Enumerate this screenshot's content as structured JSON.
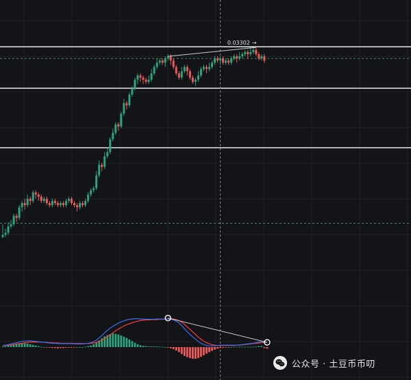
{
  "colors": {
    "background": "#131418",
    "grid": "#1f2025",
    "up": "#2ea37d",
    "down": "#ee5a5a",
    "dif_line": "#3f6df0",
    "dea_line": "#ff3b3b",
    "horizontal_line": "#ffffff",
    "dashed_level": "#3f8a6b",
    "crosshair": "#8a8b90",
    "annotation_line": "#cfcfcf"
  },
  "annotation": {
    "label": "0.03302",
    "arrow": "→"
  },
  "watermark": {
    "icon": "wechat-icon",
    "text": "公众号 · 土豆币币叨"
  },
  "chart_data": {
    "type": "candlestick",
    "y_axis": "unlabeled",
    "price_panel": {
      "price_range": [
        0,
        100
      ],
      "horizontal_lines": [
        93.5,
        74,
        46
      ],
      "dashed_levels": [
        88,
        10.5
      ],
      "crosshair_bar": 79,
      "trendline": {
        "from": {
          "bar": 60,
          "y": 89
        },
        "to": {
          "bar": 92,
          "y": 93.2
        }
      },
      "candles": [
        [
          4,
          5,
          10,
          3.5
        ],
        [
          5,
          6,
          8,
          4
        ],
        [
          6,
          9,
          11,
          5
        ],
        [
          9,
          10,
          12,
          8
        ],
        [
          10,
          14,
          15,
          9
        ],
        [
          14,
          13,
          15,
          11
        ],
        [
          13,
          18,
          19,
          12
        ],
        [
          18,
          20,
          21,
          16
        ],
        [
          20,
          19,
          22,
          17
        ],
        [
          19,
          22,
          24,
          18
        ],
        [
          22,
          21,
          23,
          19
        ],
        [
          21,
          25,
          26,
          20
        ],
        [
          25,
          24,
          26,
          22
        ],
        [
          24,
          23,
          25,
          21
        ],
        [
          23,
          21,
          24,
          20
        ],
        [
          21,
          22,
          23,
          20
        ],
        [
          22,
          20,
          23,
          19
        ],
        [
          20,
          19,
          21,
          18
        ],
        [
          19,
          21,
          22,
          18
        ],
        [
          21,
          20,
          22,
          19
        ],
        [
          20,
          19,
          21,
          18
        ],
        [
          19,
          20,
          21,
          18
        ],
        [
          20,
          19,
          21,
          18
        ],
        [
          19,
          21,
          22,
          18
        ],
        [
          21,
          22,
          23,
          20
        ],
        [
          22,
          20,
          23,
          19
        ],
        [
          20,
          19,
          21,
          18
        ],
        [
          19,
          18,
          20,
          16
        ],
        [
          18,
          20,
          21,
          17
        ],
        [
          20,
          19,
          21,
          18
        ],
        [
          19,
          21,
          22,
          18
        ],
        [
          21,
          24,
          25,
          20
        ],
        [
          24,
          26,
          27,
          23
        ],
        [
          26,
          27,
          28,
          25
        ],
        [
          27,
          33,
          35,
          26
        ],
        [
          33,
          38,
          40,
          32
        ],
        [
          38,
          37,
          39,
          35
        ],
        [
          37,
          42,
          44,
          36
        ],
        [
          42,
          44,
          46,
          41
        ],
        [
          44,
          50,
          51,
          43
        ],
        [
          50,
          53,
          55,
          49
        ],
        [
          53,
          57,
          58,
          52
        ],
        [
          57,
          56,
          58,
          54
        ],
        [
          56,
          62,
          63,
          55
        ],
        [
          62,
          67,
          69,
          61
        ],
        [
          67,
          66,
          68,
          64
        ],
        [
          66,
          71,
          72,
          65
        ],
        [
          71,
          74,
          75,
          70
        ],
        [
          74,
          78,
          79,
          73
        ],
        [
          78,
          80,
          81,
          76
        ],
        [
          80,
          79,
          81,
          77
        ],
        [
          79,
          78,
          80,
          76
        ],
        [
          78,
          77,
          79,
          76
        ],
        [
          77,
          78,
          80,
          76
        ],
        [
          78,
          81,
          83,
          77
        ],
        [
          81,
          84,
          85,
          80
        ],
        [
          84,
          86,
          88,
          83
        ],
        [
          86,
          87,
          88,
          85
        ],
        [
          87,
          86,
          88,
          85
        ],
        [
          86,
          88,
          89,
          84
        ],
        [
          88,
          89,
          90,
          87
        ],
        [
          89,
          87,
          90,
          85
        ],
        [
          87,
          84,
          88,
          83
        ],
        [
          84,
          81,
          85,
          80
        ],
        [
          81,
          79,
          82,
          78
        ],
        [
          79,
          82,
          84,
          78
        ],
        [
          82,
          84,
          85,
          81
        ],
        [
          84,
          82,
          85,
          80
        ],
        [
          82,
          79,
          83,
          78
        ],
        [
          79,
          77,
          80,
          76
        ],
        [
          77,
          78,
          79,
          75
        ],
        [
          78,
          80,
          82,
          77
        ],
        [
          80,
          83,
          84,
          79
        ],
        [
          83,
          84,
          85,
          82
        ],
        [
          84,
          83,
          85,
          81
        ],
        [
          83,
          84,
          86,
          82
        ],
        [
          84,
          86,
          87,
          83
        ],
        [
          86,
          88,
          89,
          85
        ],
        [
          88,
          87,
          89,
          86
        ],
        [
          87,
          88,
          89,
          85
        ],
        [
          88,
          86,
          89,
          85
        ],
        [
          86,
          87,
          88,
          85
        ],
        [
          87,
          86,
          88,
          85
        ],
        [
          86,
          88,
          89,
          85
        ],
        [
          88,
          89,
          90,
          87
        ],
        [
          89,
          88,
          90,
          86
        ],
        [
          88,
          89,
          91,
          87
        ],
        [
          89,
          90,
          91,
          88
        ],
        [
          90,
          91,
          92,
          89
        ],
        [
          91,
          90,
          92,
          88
        ],
        [
          90,
          91,
          93,
          89
        ],
        [
          91,
          92,
          93,
          90
        ],
        [
          92,
          90,
          93,
          89
        ],
        [
          90,
          88,
          91,
          87
        ],
        [
          88,
          89,
          90,
          87
        ],
        [
          89,
          87,
          90,
          86
        ]
      ]
    },
    "macd_panel": {
      "value_range": [
        -1,
        1
      ],
      "marker_points": [
        {
          "bar": 60,
          "y": 0.92
        },
        {
          "bar": 96,
          "y": 0.15
        }
      ],
      "dif": [
        0.05,
        0.06,
        0.08,
        0.1,
        0.12,
        0.14,
        0.16,
        0.18,
        0.19,
        0.2,
        0.2,
        0.19,
        0.18,
        0.17,
        0.16,
        0.15,
        0.14,
        0.13,
        0.12,
        0.12,
        0.11,
        0.11,
        0.11,
        0.11,
        0.11,
        0.11,
        0.1,
        0.1,
        0.1,
        0.1,
        0.11,
        0.12,
        0.14,
        0.17,
        0.22,
        0.29,
        0.37,
        0.45,
        0.53,
        0.6,
        0.66,
        0.71,
        0.76,
        0.8,
        0.83,
        0.86,
        0.88,
        0.89,
        0.9,
        0.9,
        0.89,
        0.89,
        0.88,
        0.88,
        0.88,
        0.88,
        0.89,
        0.89,
        0.89,
        0.89,
        0.89,
        0.88,
        0.86,
        0.82,
        0.76,
        0.68,
        0.58,
        0.49,
        0.4,
        0.32,
        0.25,
        0.18,
        0.12,
        0.08,
        0.05,
        0.04,
        0.04,
        0.04,
        0.05,
        0.06,
        0.06,
        0.06,
        0.06,
        0.06,
        0.06,
        0.06,
        0.07,
        0.08,
        0.09,
        0.1,
        0.11,
        0.12,
        0.14,
        0.16,
        0.17,
        0.16,
        0.15
      ],
      "dea": [
        0.04,
        0.05,
        0.06,
        0.07,
        0.08,
        0.1,
        0.11,
        0.12,
        0.14,
        0.15,
        0.16,
        0.16,
        0.16,
        0.16,
        0.16,
        0.15,
        0.15,
        0.14,
        0.14,
        0.13,
        0.13,
        0.12,
        0.12,
        0.12,
        0.12,
        0.12,
        0.11,
        0.11,
        0.11,
        0.11,
        0.11,
        0.11,
        0.12,
        0.13,
        0.15,
        0.18,
        0.22,
        0.27,
        0.33,
        0.39,
        0.45,
        0.51,
        0.57,
        0.62,
        0.67,
        0.71,
        0.74,
        0.77,
        0.8,
        0.82,
        0.84,
        0.85,
        0.86,
        0.86,
        0.87,
        0.87,
        0.87,
        0.88,
        0.88,
        0.89,
        0.9,
        0.9,
        0.89,
        0.87,
        0.84,
        0.79,
        0.72,
        0.64,
        0.56,
        0.48,
        0.4,
        0.32,
        0.25,
        0.19,
        0.14,
        0.1,
        0.08,
        0.06,
        0.05,
        0.05,
        0.05,
        0.05,
        0.05,
        0.05,
        0.05,
        0.06,
        0.06,
        0.07,
        0.08,
        0.09,
        0.1,
        0.11,
        0.12,
        0.13,
        0.14,
        0.15,
        0.15
      ],
      "histogram": [
        0.02,
        0.03,
        0.05,
        0.07,
        0.09,
        0.1,
        0.12,
        0.13,
        0.12,
        0.11,
        0.09,
        0.07,
        0.05,
        0.03,
        0.01,
        0.0,
        -0.01,
        -0.02,
        -0.03,
        -0.03,
        -0.04,
        -0.03,
        -0.03,
        -0.02,
        -0.02,
        -0.01,
        -0.01,
        0.0,
        0.0,
        0.0,
        0.01,
        0.03,
        0.05,
        0.09,
        0.14,
        0.21,
        0.28,
        0.34,
        0.38,
        0.41,
        0.43,
        0.42,
        0.4,
        0.37,
        0.33,
        0.29,
        0.24,
        0.19,
        0.14,
        0.09,
        0.06,
        0.04,
        0.03,
        0.02,
        0.02,
        0.02,
        0.02,
        0.01,
        0.01,
        0.0,
        -0.02,
        -0.04,
        -0.07,
        -0.11,
        -0.16,
        -0.22,
        -0.28,
        -0.32,
        -0.35,
        -0.37,
        -0.37,
        -0.35,
        -0.31,
        -0.26,
        -0.21,
        -0.16,
        -0.12,
        -0.08,
        -0.05,
        -0.03,
        -0.02,
        -0.01,
        0.0,
        0.0,
        0.01,
        0.01,
        0.01,
        0.01,
        0.01,
        0.01,
        0.01,
        0.01,
        0.02,
        0.03,
        0.03,
        -0.03,
        -0.05
      ]
    }
  }
}
